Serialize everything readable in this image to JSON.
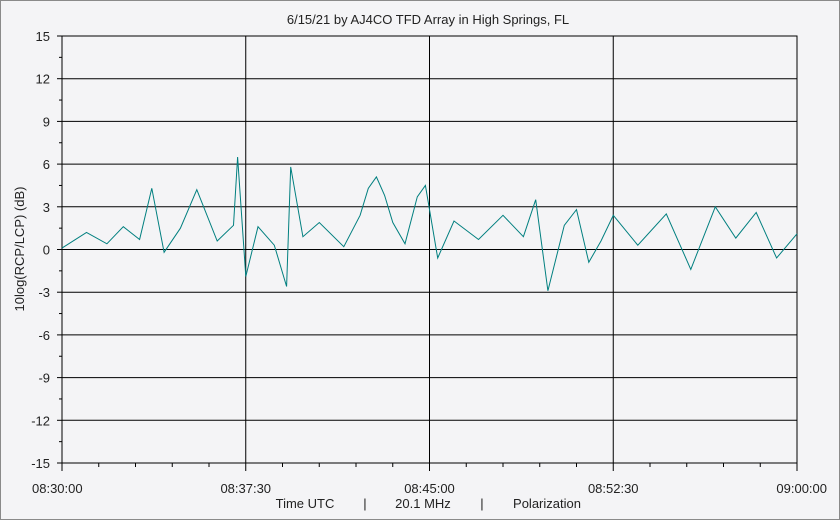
{
  "chart_data": {
    "type": "line",
    "title": "6/15/21  by  AJ4CO TFD Array  in  High Springs, FL",
    "ylabel": "10log(RCP/LCP)  (dB)",
    "footer": {
      "xlabel": "Time UTC",
      "separator1": "|",
      "frequency": "20.1 MHz",
      "separator2": "|",
      "mode": "Polarization"
    },
    "ylim": [
      -15,
      15
    ],
    "yticks": [
      "15",
      "12",
      "9",
      "6",
      "3",
      "0",
      "-3",
      "-6",
      "-9",
      "-12",
      "-15"
    ],
    "xlim": [
      "08:30:00",
      "09:00:00"
    ],
    "xticks": [
      "08:30:00",
      "08:37:30",
      "08:45:00",
      "08:52:30",
      "09:00:00"
    ],
    "grid": true,
    "line_color": "#007f7f",
    "series": [
      {
        "x": [
          "08:30:00",
          "08:31:00",
          "08:31:50",
          "08:32:30",
          "08:33:10",
          "08:33:40",
          "08:34:10",
          "08:34:50",
          "08:35:30",
          "08:36:20",
          "08:37:00",
          "08:37:10",
          "08:37:30",
          "08:38:00",
          "08:38:40",
          "08:39:10",
          "08:39:20",
          "08:39:50",
          "08:40:30",
          "08:41:30",
          "08:42:10",
          "08:42:30",
          "08:42:50",
          "08:43:10",
          "08:43:30",
          "08:44:00",
          "08:44:30",
          "08:44:50",
          "08:45:00",
          "08:45:20",
          "08:46:00",
          "08:47:00",
          "08:48:00",
          "08:48:50",
          "08:49:20",
          "08:49:50",
          "08:50:30",
          "08:51:00",
          "08:51:30",
          "08:52:00",
          "08:52:30",
          "08:53:30",
          "08:54:40",
          "08:55:40",
          "08:56:40",
          "08:57:30",
          "08:58:20",
          "08:59:10",
          "09:00:00"
        ],
        "y": [
          0.1,
          1.2,
          0.4,
          1.6,
          0.7,
          4.3,
          -0.2,
          1.5,
          4.2,
          0.6,
          1.7,
          6.5,
          -1.9,
          1.6,
          0.3,
          -2.6,
          5.8,
          0.9,
          1.9,
          0.2,
          2.4,
          4.3,
          5.1,
          3.8,
          1.9,
          0.4,
          3.7,
          4.5,
          2.8,
          -0.6,
          2.0,
          0.7,
          2.4,
          0.9,
          3.5,
          -2.9,
          1.7,
          2.8,
          -0.9,
          0.6,
          2.4,
          0.3,
          2.5,
          -1.4,
          3.0,
          0.8,
          2.6,
          -0.6,
          1.1
        ]
      }
    ]
  }
}
